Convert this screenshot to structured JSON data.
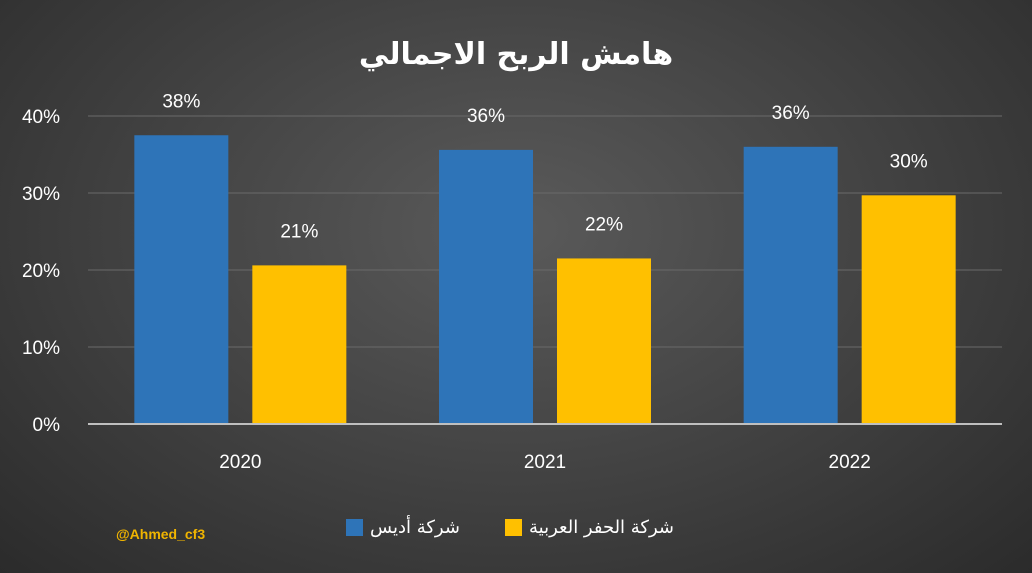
{
  "credit": "@Ahmed_cf3",
  "colors": {
    "series_1": "#2e74b8",
    "series_2": "#ffc000",
    "grid": "#6a6a6a",
    "axis": "#bfbfbf",
    "text": "#ffffff",
    "credit": "#f0b400"
  },
  "chart_data": {
    "type": "bar",
    "title": "هامش الربح الاجمالي",
    "categories": [
      "2020",
      "2021",
      "2022"
    ],
    "series": [
      {
        "name": "شركة أديس",
        "values": [
          37.5,
          35.6,
          36.0
        ],
        "labels": [
          "38%",
          "36%",
          "36%"
        ]
      },
      {
        "name": "شركة الحفر العربية",
        "values": [
          20.6,
          21.5,
          29.7
        ],
        "labels": [
          "21%",
          "22%",
          "30%"
        ]
      }
    ],
    "ylim": [
      0,
      40
    ],
    "yticks": [
      "0%",
      "10%",
      "20%",
      "30%",
      "40%"
    ],
    "grid": true,
    "legend_position": "bottom"
  }
}
